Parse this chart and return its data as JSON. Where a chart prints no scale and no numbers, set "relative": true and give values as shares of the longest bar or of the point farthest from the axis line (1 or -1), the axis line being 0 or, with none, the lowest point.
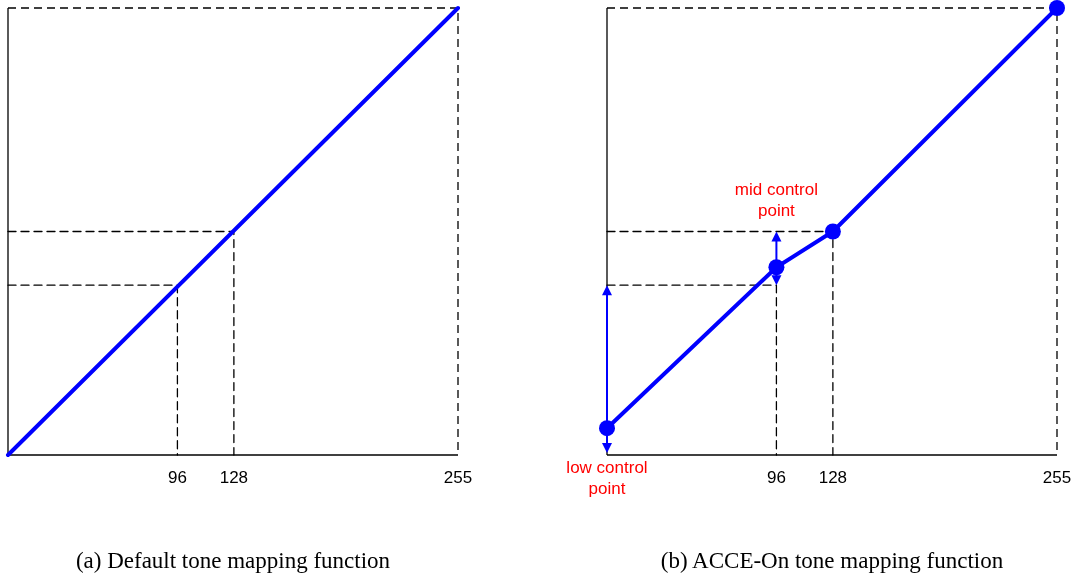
{
  "chart_data": [
    {
      "type": "line",
      "title": "(a)  Default tone mapping function",
      "xlim": [
        0,
        255
      ],
      "xticks": [
        96,
        128,
        255
      ],
      "tick_labels": "x",
      "relative": true,
      "series": [
        {
          "color": "#000000",
          "line_style": "dashed",
          "marker": "none",
          "x": [
            0,
            96,
            96
          ],
          "values": [
            0.38,
            0.38,
            0
          ]
        },
        {
          "color": "#000000",
          "line_style": "dashed",
          "marker": "none",
          "x": [
            0,
            128,
            128
          ],
          "values": [
            0.5,
            0.5,
            0
          ]
        },
        {
          "color": "#0000ff",
          "line_style": "solid",
          "marker": "none",
          "x": [
            0,
            255
          ],
          "values": [
            0,
            1
          ]
        }
      ]
    },
    {
      "type": "line",
      "title": "(b) ACCE-On tone mapping function",
      "xlim": [
        0,
        255
      ],
      "xticks": [
        96,
        128,
        255
      ],
      "tick_labels": "x",
      "relative": true,
      "annotations": [
        "low control point",
        "mid control point"
      ],
      "series": [
        {
          "color": "#000000",
          "line_style": "dashed",
          "marker": "none",
          "x": [
            0,
            96,
            96
          ],
          "values": [
            0.38,
            0.38,
            0
          ]
        },
        {
          "color": "#000000",
          "line_style": "dashed",
          "marker": "none",
          "x": [
            0,
            128,
            128
          ],
          "values": [
            0.5,
            0.5,
            0
          ]
        },
        {
          "color": "#0000ff",
          "line_style": "solid",
          "marker": "circle",
          "x": [
            0,
            96,
            128,
            255
          ],
          "values": [
            0.06,
            0.42,
            0.5,
            1
          ]
        }
      ]
    }
  ]
}
